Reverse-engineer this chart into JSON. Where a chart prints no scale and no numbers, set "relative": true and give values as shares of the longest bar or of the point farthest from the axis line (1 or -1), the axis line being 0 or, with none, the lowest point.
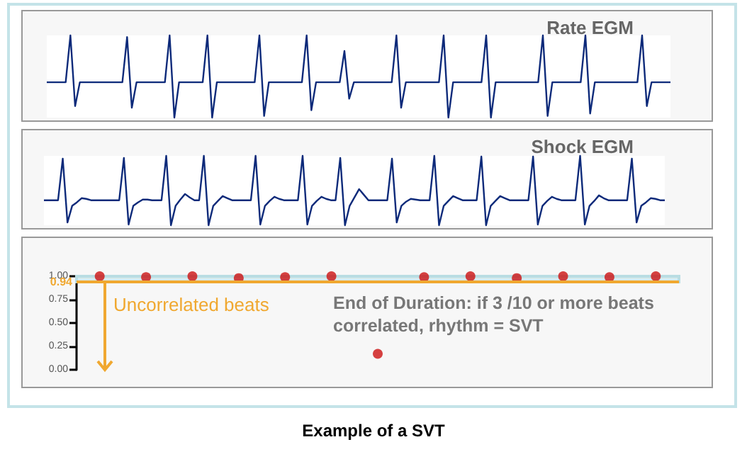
{
  "chart_data": [
    {
      "type": "line",
      "title": "Rate EGM",
      "relative": true,
      "tick_labels": false,
      "marker": "none",
      "line_style": "solid",
      "categories": [
        null,
        null,
        null,
        null,
        null,
        null,
        null,
        null,
        null,
        null,
        null,
        null,
        null,
        null,
        null,
        null,
        null,
        null,
        null,
        null,
        null,
        null,
        null,
        null,
        null,
        null,
        null,
        null,
        null,
        null,
        null,
        null,
        null,
        null,
        null,
        null,
        null,
        null,
        null,
        null,
        null,
        null,
        null,
        null,
        null,
        null,
        null,
        null,
        null,
        null,
        null,
        null,
        null,
        null,
        null,
        null,
        null,
        null,
        null,
        null,
        null,
        null,
        null,
        null,
        null,
        null,
        null,
        null,
        null,
        null,
        null,
        null,
        null,
        null,
        null,
        null,
        null,
        null,
        null,
        null,
        null,
        null,
        null,
        null,
        null,
        null,
        null,
        null,
        null,
        null,
        null,
        null,
        null,
        null,
        null,
        null,
        null,
        null,
        null,
        null,
        null,
        null,
        null,
        null,
        null,
        null,
        null,
        null,
        null,
        null,
        null,
        null,
        null,
        null,
        null,
        null,
        null,
        null,
        null,
        null,
        null,
        null,
        null,
        null,
        null,
        null,
        null,
        null,
        null,
        null,
        null,
        null,
        null
      ],
      "series": [
        {
          "color": "#0d2a7a",
          "values": [
            0.43,
            0.43,
            0.43,
            0.43,
            0.43,
            1,
            0.14,
            0.43,
            0.43,
            0.43,
            0.43,
            0.43,
            0.43,
            0.43,
            0.43,
            0.43,
            0.43,
            0.98,
            0.12,
            0.43,
            0.43,
            0.43,
            0.43,
            0.43,
            0.43,
            0.43,
            1,
            0,
            0.43,
            0.43,
            0.43,
            0.43,
            0.43,
            0.43,
            1,
            0,
            0.43,
            0.43,
            0.43,
            0.43,
            0.43,
            0.43,
            0.43,
            0.43,
            0.43,
            1,
            0.02,
            0.43,
            0.43,
            0.43,
            0.43,
            0.43,
            0.43,
            0.43,
            0.43,
            1,
            0.09,
            0.43,
            0.43,
            0.43,
            0.43,
            0.43,
            0.43,
            0.81,
            0.23,
            0.43,
            0.43,
            0.43,
            0.43,
            0.43,
            0.43,
            0.43,
            0.43,
            0.43,
            1,
            0.12,
            0.43,
            0.43,
            0.43,
            0.43,
            0.43,
            0.43,
            0.43,
            0.43,
            1,
            0,
            0.43,
            0.43,
            0.43,
            0.43,
            0.43,
            0.43,
            0.43,
            1,
            0,
            0.43,
            0.43,
            0.43,
            0.43,
            0.43,
            0.43,
            0.43,
            0.43,
            0.43,
            0.43,
            1,
            0.02,
            0.43,
            0.43,
            0.43,
            0.43,
            0.43,
            0.43,
            0.43,
            1,
            0.05,
            0.43,
            0.43,
            0.43,
            0.43,
            0.43,
            0.43,
            0.43,
            0.43,
            0.43,
            0.43,
            1,
            0.14,
            0.43,
            0.43,
            0.43,
            0.43,
            0.43
          ]
        }
      ]
    },
    {
      "type": "line",
      "title": "Shock EGM",
      "relative": true,
      "tick_labels": false,
      "marker": "none",
      "line_style": "solid",
      "categories": [
        null,
        null,
        null,
        null,
        null,
        null,
        null,
        null,
        null,
        null,
        null,
        null,
        null,
        null,
        null,
        null,
        null,
        null,
        null,
        null,
        null,
        null,
        null,
        null,
        null,
        null,
        null,
        null,
        null,
        null,
        null,
        null,
        null,
        null,
        null,
        null,
        null,
        null,
        null,
        null,
        null,
        null,
        null,
        null,
        null,
        null,
        null,
        null,
        null,
        null,
        null,
        null,
        null,
        null,
        null,
        null,
        null,
        null,
        null,
        null,
        null,
        null,
        null,
        null,
        null,
        null,
        null,
        null,
        null,
        null,
        null,
        null,
        null,
        null,
        null,
        null,
        null,
        null,
        null,
        null,
        null,
        null,
        null,
        null,
        null,
        null,
        null,
        null,
        null,
        null,
        null,
        null,
        null,
        null,
        null,
        null,
        null,
        null,
        null,
        null,
        null,
        null,
        null,
        null,
        null,
        null,
        null,
        null,
        null,
        null,
        null,
        null,
        null,
        null,
        null,
        null,
        null,
        null,
        null,
        null,
        null,
        null,
        null,
        null,
        null,
        null,
        null,
        null,
        null,
        null,
        null,
        null,
        null
      ],
      "series": [
        {
          "color": "#0d2a7a",
          "values": [
            0.36,
            0.36,
            0.36,
            0.36,
            0.96,
            0.04,
            0.28,
            0.33,
            0.39,
            0.38,
            0.36,
            0.36,
            0.36,
            0.36,
            0.36,
            0.36,
            0.36,
            0.97,
            0.01,
            0.28,
            0.33,
            0.37,
            0.37,
            0.36,
            0.36,
            0.36,
            1,
            0,
            0.28,
            0.37,
            0.45,
            0.4,
            0.36,
            0.36,
            1,
            0,
            0.28,
            0.35,
            0.42,
            0.39,
            0.36,
            0.36,
            0.36,
            0.36,
            0.36,
            1,
            0.01,
            0.28,
            0.35,
            0.41,
            0.38,
            0.36,
            0.36,
            0.36,
            0.36,
            1,
            0.01,
            0.28,
            0.35,
            0.41,
            0.38,
            0.36,
            0.36,
            0.97,
            0,
            0.28,
            0.4,
            0.52,
            0.44,
            0.36,
            0.36,
            0.36,
            0.36,
            0.36,
            0.96,
            0.04,
            0.28,
            0.34,
            0.38,
            0.37,
            0.36,
            0.36,
            0.36,
            1,
            0,
            0.28,
            0.35,
            0.42,
            0.39,
            0.36,
            0.36,
            0.36,
            0.36,
            0.99,
            0,
            0.28,
            0.35,
            0.42,
            0.39,
            0.36,
            0.36,
            0.36,
            0.36,
            0.36,
            0.99,
            0.01,
            0.28,
            0.35,
            0.41,
            0.38,
            0.36,
            0.36,
            0.36,
            0.36,
            1,
            0.01,
            0.28,
            0.35,
            0.43,
            0.39,
            0.36,
            0.36,
            0.36,
            0.36,
            0.36,
            0.96,
            0.04,
            0.28,
            0.33,
            0.39,
            0.38,
            0.36,
            0.36
          ]
        }
      ]
    },
    {
      "type": "scatter",
      "tick_labels": "y",
      "marker": "circle",
      "categories": [
        null,
        null,
        null,
        null,
        null,
        null,
        null,
        null,
        null,
        null,
        null,
        null,
        null
      ],
      "ylim": [
        0,
        1
      ],
      "yticks": [
        {
          "value": 0,
          "label": "0.00"
        },
        {
          "value": 0.25,
          "label": "0.25"
        },
        {
          "value": 0.5,
          "label": "0.50"
        },
        {
          "value": 0.75,
          "label": "0.75"
        },
        {
          "value": 1,
          "label": "1.00"
        }
      ],
      "series": [
        {
          "color": "#cc1111",
          "values": [
            1,
            0.99,
            1,
            0.98,
            0.99,
            1,
            0.17,
            0.99,
            1,
            0.98,
            1,
            0.99,
            1
          ]
        }
      ],
      "ref_lines": [
        {
          "axis": "y",
          "value": 0.94,
          "label": "0.94",
          "color": "#f0a830"
        }
      ],
      "bands": [
        {
          "axis": "y",
          "from": 0.94,
          "to": 1,
          "color": "#d6ebee"
        }
      ],
      "annotations": [
        "Uncorrelated beats",
        "End of Duration: if 3 /10 or more beats correlated, rhythm = SVT",
        "Example of a SVT"
      ]
    }
  ]
}
